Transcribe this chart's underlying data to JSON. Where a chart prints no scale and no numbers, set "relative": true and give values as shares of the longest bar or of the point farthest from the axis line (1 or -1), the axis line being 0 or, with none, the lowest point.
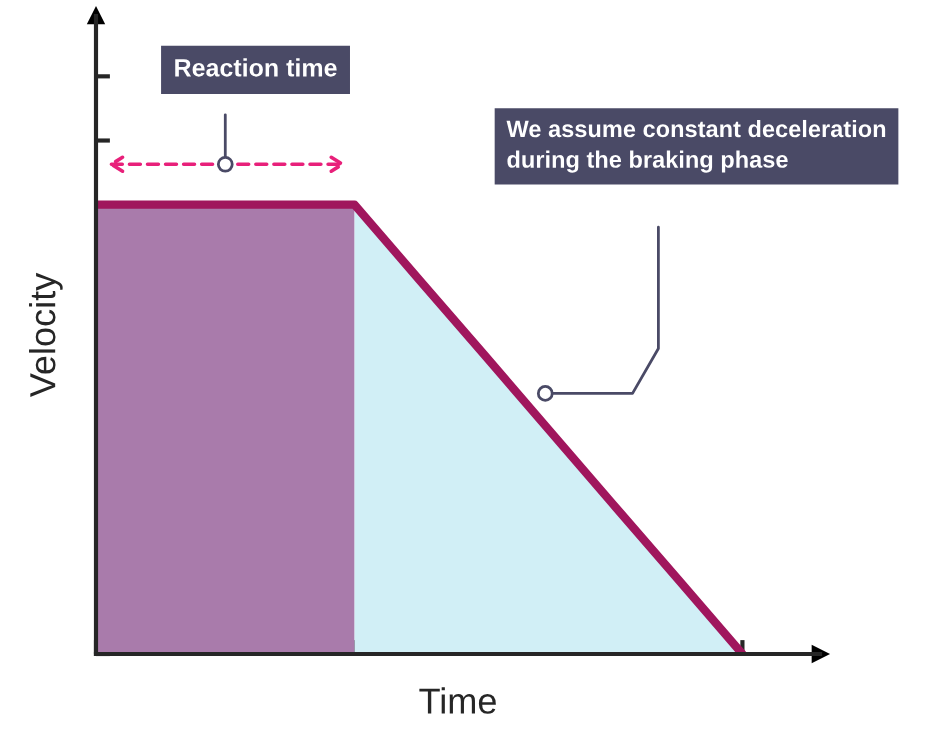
{
  "chart_data": {
    "type": "area",
    "relative": true,
    "xlabel": "Time",
    "ylabel": "Velocity",
    "tick_labels": false,
    "grid": false,
    "legend": false,
    "categories": [
      null,
      null,
      null,
      null,
      null,
      null,
      null,
      null,
      null,
      null,
      null
    ],
    "series": [
      {
        "color": "#a97bab",
        "values": [
          1,
          1,
          1,
          1,
          1,
          null,
          null,
          null,
          null,
          null,
          null
        ]
      },
      {
        "color": "#d1eff6",
        "values": [
          null,
          null,
          null,
          null,
          1,
          0.833,
          0.667,
          0.5,
          0.333,
          0.167,
          0
        ]
      },
      {
        "type": "line",
        "color": "#a0165d",
        "values": [
          1,
          1,
          1,
          1,
          1,
          0.833,
          0.667,
          0.5,
          0.333,
          0.167,
          0
        ]
      }
    ],
    "annotations": [
      "Reaction time",
      "We assume constant deceleration during the braking phase"
    ]
  }
}
